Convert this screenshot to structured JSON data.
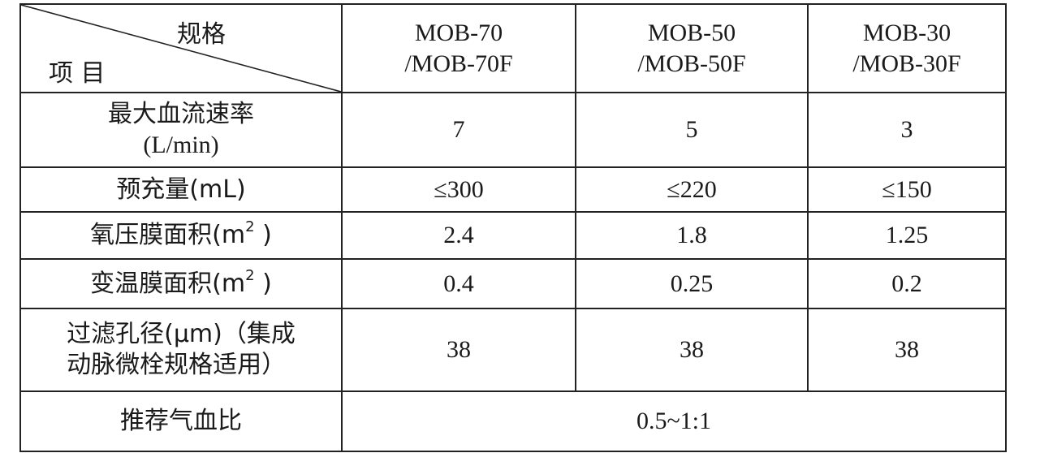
{
  "table": {
    "corner": {
      "spec_label": "规格",
      "item_label": "项 目"
    },
    "models": [
      {
        "line1": "MOB-70",
        "line2": "/MOB-70F"
      },
      {
        "line1": "MOB-50",
        "line2": "/MOB-50F"
      },
      {
        "line1": "MOB-30",
        "line2": "/MOB-30F"
      }
    ],
    "rows": {
      "max_flow": {
        "label_line1": "最大血流速率",
        "label_line2": "(L/min)",
        "values": [
          "7",
          "5",
          "3"
        ]
      },
      "priming": {
        "label": "预充量(mL)",
        "values": [
          "≤300",
          "≤220",
          "≤150"
        ]
      },
      "oxy_area": {
        "label": "氧压膜面积(m",
        "sup": "2",
        "close": " )",
        "values": [
          "2.4",
          "1.8",
          "1.25"
        ]
      },
      "temp_area": {
        "label": "变温膜面积(m",
        "sup": "2",
        "close": " )",
        "values": [
          "0.4",
          "0.25",
          "0.2"
        ]
      },
      "filter": {
        "label_line1": "过滤孔径(μm)（集成",
        "label_line2": "动脉微栓规格适用）",
        "values": [
          "38",
          "38",
          "38"
        ]
      },
      "gas_blood_ratio": {
        "label": "推荐气血比",
        "value": "0.5~1:1"
      }
    }
  }
}
